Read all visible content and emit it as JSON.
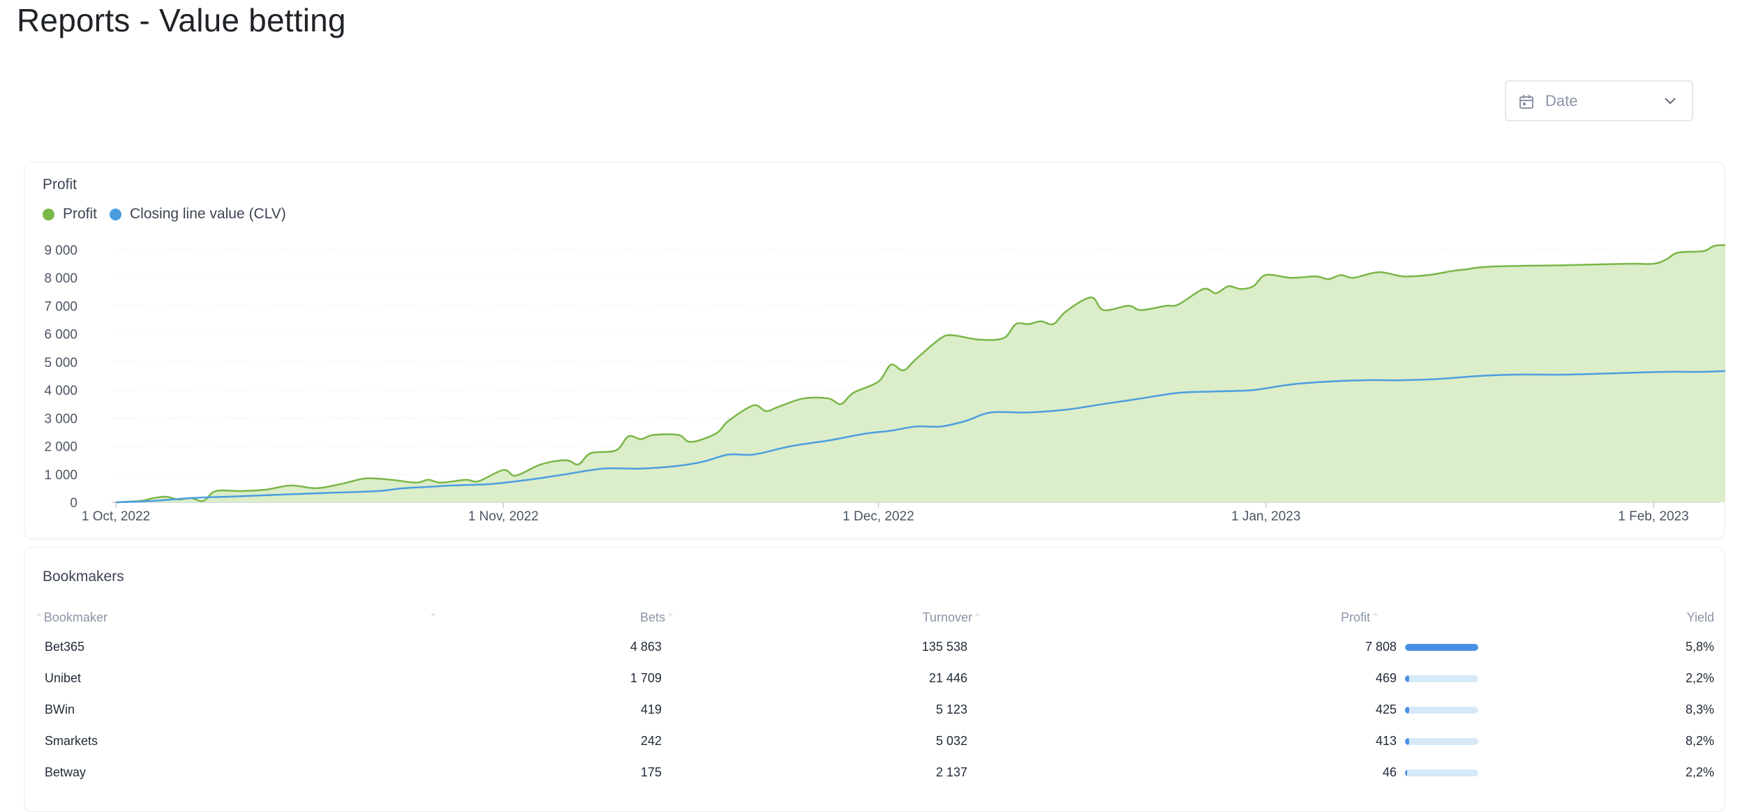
{
  "page": {
    "title": "Reports - Value betting"
  },
  "filters": {
    "date_label": "Date"
  },
  "profit_card": {
    "title": "Profit",
    "legend": [
      {
        "label": "Profit",
        "color": "#7ab648"
      },
      {
        "label": "Closing line value (CLV)",
        "color": "#4a9ee0"
      }
    ]
  },
  "chart_data": {
    "type": "area",
    "x_start": "2022-10-01",
    "x_ticks": [
      "1 Oct, 2022",
      "1 Nov, 2022",
      "1 Dec, 2022",
      "1 Jan, 2023",
      "1 Feb, 2023"
    ],
    "x_tick_dates": [
      "2022-10-01",
      "2022-11-01",
      "2022-12-01",
      "2023-01-01",
      "2023-02-01"
    ],
    "x_end": "2023-02-08",
    "y_ticks": [
      "0",
      "1 000",
      "2 000",
      "3 000",
      "4 000",
      "5 000",
      "6 000",
      "7 000",
      "8 000",
      "9 000"
    ],
    "ylim": [
      0,
      9500
    ],
    "grid": true,
    "legend_position": "top-left",
    "series": [
      {
        "name": "Profit",
        "color": "#7ab648",
        "fill": "#dbedc9",
        "points": [
          [
            "2022-10-01",
            0
          ],
          [
            "2022-10-03",
            50
          ],
          [
            "2022-10-04",
            150
          ],
          [
            "2022-10-05",
            200
          ],
          [
            "2022-10-06",
            100
          ],
          [
            "2022-10-07",
            150
          ],
          [
            "2022-10-08",
            50
          ],
          [
            "2022-10-09",
            400
          ],
          [
            "2022-10-11",
            400
          ],
          [
            "2022-10-13",
            450
          ],
          [
            "2022-10-15",
            600
          ],
          [
            "2022-10-17",
            500
          ],
          [
            "2022-10-19",
            650
          ],
          [
            "2022-10-21",
            850
          ],
          [
            "2022-10-23",
            800
          ],
          [
            "2022-10-25",
            700
          ],
          [
            "2022-10-26",
            800
          ],
          [
            "2022-10-27",
            700
          ],
          [
            "2022-10-29",
            800
          ],
          [
            "2022-10-30",
            750
          ],
          [
            "2022-11-01",
            1150
          ],
          [
            "2022-11-02",
            950
          ],
          [
            "2022-11-04",
            1350
          ],
          [
            "2022-11-06",
            1500
          ],
          [
            "2022-11-07",
            1350
          ],
          [
            "2022-11-08",
            1750
          ],
          [
            "2022-11-10",
            1850
          ],
          [
            "2022-11-11",
            2350
          ],
          [
            "2022-11-12",
            2250
          ],
          [
            "2022-11-13",
            2400
          ],
          [
            "2022-11-15",
            2400
          ],
          [
            "2022-11-16",
            2150
          ],
          [
            "2022-11-18",
            2450
          ],
          [
            "2022-11-19",
            2900
          ],
          [
            "2022-11-21",
            3450
          ],
          [
            "2022-11-22",
            3250
          ],
          [
            "2022-11-23",
            3400
          ],
          [
            "2022-11-25",
            3700
          ],
          [
            "2022-11-27",
            3700
          ],
          [
            "2022-11-28",
            3500
          ],
          [
            "2022-11-29",
            3900
          ],
          [
            "2022-12-01",
            4300
          ],
          [
            "2022-12-02",
            4900
          ],
          [
            "2022-12-03",
            4700
          ],
          [
            "2022-12-04",
            5100
          ],
          [
            "2022-12-06",
            5850
          ],
          [
            "2022-12-07",
            5950
          ],
          [
            "2022-12-09",
            5800
          ],
          [
            "2022-12-11",
            5850
          ],
          [
            "2022-12-12",
            6350
          ],
          [
            "2022-12-13",
            6350
          ],
          [
            "2022-12-14",
            6450
          ],
          [
            "2022-12-15",
            6350
          ],
          [
            "2022-12-16",
            6800
          ],
          [
            "2022-12-18",
            7300
          ],
          [
            "2022-12-19",
            6850
          ],
          [
            "2022-12-21",
            7000
          ],
          [
            "2022-12-22",
            6850
          ],
          [
            "2022-12-24",
            7000
          ],
          [
            "2022-12-25",
            7050
          ],
          [
            "2022-12-27",
            7600
          ],
          [
            "2022-12-28",
            7450
          ],
          [
            "2022-12-29",
            7700
          ],
          [
            "2022-12-30",
            7600
          ],
          [
            "2022-12-31",
            7700
          ],
          [
            "2023-01-01",
            8100
          ],
          [
            "2023-01-03",
            8000
          ],
          [
            "2023-01-05",
            8050
          ],
          [
            "2023-01-06",
            7950
          ],
          [
            "2023-01-07",
            8100
          ],
          [
            "2023-01-08",
            8000
          ],
          [
            "2023-01-10",
            8200
          ],
          [
            "2023-01-12",
            8050
          ],
          [
            "2023-01-14",
            8100
          ],
          [
            "2023-01-16",
            8250
          ],
          [
            "2023-01-17",
            8300
          ],
          [
            "2023-01-19",
            8400
          ],
          [
            "2023-01-25",
            8450
          ],
          [
            "2023-01-30",
            8500
          ],
          [
            "2023-02-01",
            8500
          ],
          [
            "2023-02-02",
            8650
          ],
          [
            "2023-02-03",
            8900
          ],
          [
            "2023-02-05",
            8950
          ],
          [
            "2023-02-06",
            9150
          ],
          [
            "2023-02-08",
            9150
          ]
        ]
      },
      {
        "name": "Closing line value (CLV)",
        "color": "#4a9ee0",
        "points": [
          [
            "2022-10-01",
            0
          ],
          [
            "2022-10-04",
            50
          ],
          [
            "2022-10-07",
            150
          ],
          [
            "2022-10-10",
            200
          ],
          [
            "2022-10-13",
            250
          ],
          [
            "2022-10-16",
            300
          ],
          [
            "2022-10-19",
            350
          ],
          [
            "2022-10-22",
            400
          ],
          [
            "2022-10-24",
            500
          ],
          [
            "2022-10-26",
            550
          ],
          [
            "2022-10-28",
            600
          ],
          [
            "2022-10-31",
            650
          ],
          [
            "2022-11-03",
            800
          ],
          [
            "2022-11-06",
            1000
          ],
          [
            "2022-11-09",
            1200
          ],
          [
            "2022-11-12",
            1200
          ],
          [
            "2022-11-15",
            1300
          ],
          [
            "2022-11-17",
            1450
          ],
          [
            "2022-11-19",
            1700
          ],
          [
            "2022-11-21",
            1700
          ],
          [
            "2022-11-24",
            2000
          ],
          [
            "2022-11-27",
            2200
          ],
          [
            "2022-11-30",
            2450
          ],
          [
            "2022-12-02",
            2550
          ],
          [
            "2022-12-04",
            2700
          ],
          [
            "2022-12-06",
            2700
          ],
          [
            "2022-12-08",
            2900
          ],
          [
            "2022-12-10",
            3200
          ],
          [
            "2022-12-13",
            3200
          ],
          [
            "2022-12-16",
            3300
          ],
          [
            "2022-12-19",
            3500
          ],
          [
            "2022-12-22",
            3700
          ],
          [
            "2022-12-25",
            3900
          ],
          [
            "2022-12-28",
            3950
          ],
          [
            "2022-12-31",
            4000
          ],
          [
            "2023-01-03",
            4200
          ],
          [
            "2023-01-06",
            4300
          ],
          [
            "2023-01-09",
            4350
          ],
          [
            "2023-01-12",
            4350
          ],
          [
            "2023-01-15",
            4400
          ],
          [
            "2023-01-18",
            4500
          ],
          [
            "2023-01-21",
            4550
          ],
          [
            "2023-01-25",
            4550
          ],
          [
            "2023-01-29",
            4600
          ],
          [
            "2023-02-02",
            4650
          ],
          [
            "2023-02-05",
            4650
          ],
          [
            "2023-02-08",
            4700
          ]
        ]
      }
    ]
  },
  "bookmakers": {
    "title": "Bookmakers",
    "columns": {
      "bookmaker": "Bookmaker",
      "bets": "Bets",
      "turnover": "Turnover",
      "profit": "Profit",
      "yield": "Yield"
    },
    "rows": [
      {
        "name": "Bet365",
        "bets": "4 863",
        "turnover": "135 538",
        "profit": "7 808",
        "profit_share": 1.0,
        "yield": "5,8%"
      },
      {
        "name": "Unibet",
        "bets": "1 709",
        "turnover": "21 446",
        "profit": "469",
        "profit_share": 0.06,
        "yield": "2,2%"
      },
      {
        "name": "BWin",
        "bets": "419",
        "turnover": "5 123",
        "profit": "425",
        "profit_share": 0.055,
        "yield": "8,3%"
      },
      {
        "name": "Smarkets",
        "bets": "242",
        "turnover": "5 032",
        "profit": "413",
        "profit_share": 0.053,
        "yield": "8,2%"
      },
      {
        "name": "Betway",
        "bets": "175",
        "turnover": "2 137",
        "profit": "46",
        "profit_share": 0.006,
        "yield": "2,2%"
      }
    ]
  }
}
